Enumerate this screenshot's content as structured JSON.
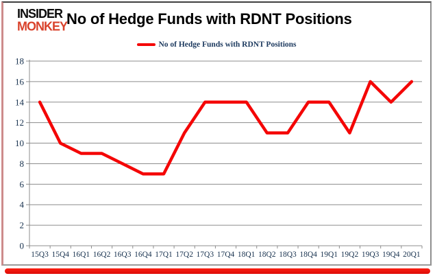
{
  "header": {
    "logo_line1": "INSIDER",
    "logo_line2": "MONKEY",
    "title": "No of Hedge Funds with RDNT Positions"
  },
  "legend": {
    "label": "No of Hedge Funds with RDNT Positions",
    "swatch_color": "#f40606"
  },
  "chart_data": {
    "type": "line",
    "title": "No of Hedge Funds with RDNT Positions",
    "categories": [
      "15Q3",
      "15Q4",
      "16Q1",
      "16Q2",
      "16Q3",
      "16Q4",
      "17Q1",
      "17Q2",
      "17Q3",
      "17Q4",
      "18Q1",
      "18Q2",
      "18Q3",
      "18Q4",
      "19Q1",
      "19Q2",
      "19Q3",
      "19Q4",
      "20Q1"
    ],
    "series": [
      {
        "name": "No of Hedge Funds with RDNT Positions",
        "color": "#f40606",
        "values": [
          14,
          10,
          9,
          9,
          8,
          7,
          7,
          11,
          14,
          14,
          14,
          11,
          11,
          14,
          14,
          11,
          16,
          14,
          16
        ]
      }
    ],
    "xlabel": "",
    "ylabel": "",
    "ylim": [
      0,
      18
    ],
    "ytick_step": 2,
    "grid": true,
    "legend_position": "top"
  },
  "colors": {
    "accent_red": "#f40606",
    "logo_red": "#d9422b",
    "gridline": "#8c8c8c",
    "axis_label": "#16304d",
    "frame_border": "#8f8f8f",
    "background": "#ffffff"
  }
}
